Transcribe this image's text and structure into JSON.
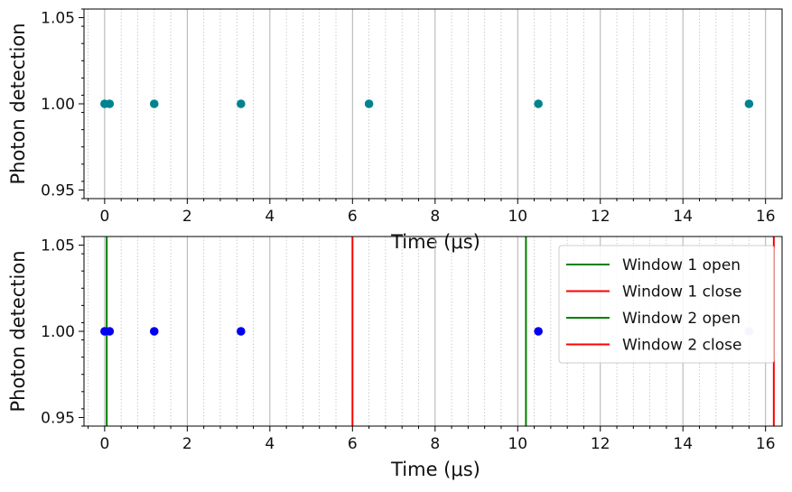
{
  "chart_data": [
    {
      "type": "scatter",
      "xlabel": "Time (μs)",
      "ylabel": "Photon detection",
      "xlim": [
        -0.5,
        16.4
      ],
      "ylim": [
        0.945,
        1.055
      ],
      "xticks": [
        0,
        2,
        4,
        6,
        8,
        10,
        12,
        14,
        16
      ],
      "xtick_labels": [
        "0",
        "2",
        "4",
        "6",
        "8",
        "10",
        "12",
        "14",
        "16"
      ],
      "yticks": [
        0.95,
        1.0,
        1.05
      ],
      "ytick_labels": [
        "0.95",
        "1.00",
        "1.05"
      ],
      "grid": {
        "major": true,
        "minor_dotted": true
      },
      "color": "#00838f",
      "points": {
        "x": [
          0.0,
          0.12,
          1.2,
          3.3,
          6.4,
          10.5,
          15.6
        ],
        "y": [
          1.0,
          1.0,
          1.0,
          1.0,
          1.0,
          1.0,
          1.0
        ]
      }
    },
    {
      "type": "scatter",
      "xlabel": "Time (μs)",
      "ylabel": "Photon detection",
      "xlim": [
        -0.5,
        16.4
      ],
      "ylim": [
        0.945,
        1.055
      ],
      "xticks": [
        0,
        2,
        4,
        6,
        8,
        10,
        12,
        14,
        16
      ],
      "xtick_labels": [
        "0",
        "2",
        "4",
        "6",
        "8",
        "10",
        "12",
        "14",
        "16"
      ],
      "yticks": [
        0.95,
        1.0,
        1.05
      ],
      "ytick_labels": [
        "0.95",
        "1.00",
        "1.05"
      ],
      "grid": {
        "major": true,
        "minor_dotted": true
      },
      "points": {
        "x": [
          0.0,
          0.12,
          1.2,
          3.3,
          10.5,
          15.6
        ],
        "y": [
          1.0,
          1.0,
          1.0,
          1.0,
          1.0,
          1.0
        ],
        "colors": [
          "#0000ee",
          "#0000ee",
          "#0000ee",
          "#0000ee",
          "#0000ee",
          "#b8b8f0"
        ]
      },
      "vlines": [
        {
          "name": "Window 1 open",
          "x": 0.05,
          "color": "#008000"
        },
        {
          "name": "Window 1 close",
          "x": 6.0,
          "color": "#ff0000"
        },
        {
          "name": "Window 2 open",
          "x": 10.2,
          "color": "#008000"
        },
        {
          "name": "Window 2 close",
          "x": 16.2,
          "color": "#ff0000"
        }
      ],
      "legend": {
        "placement": "top-right"
      }
    }
  ]
}
